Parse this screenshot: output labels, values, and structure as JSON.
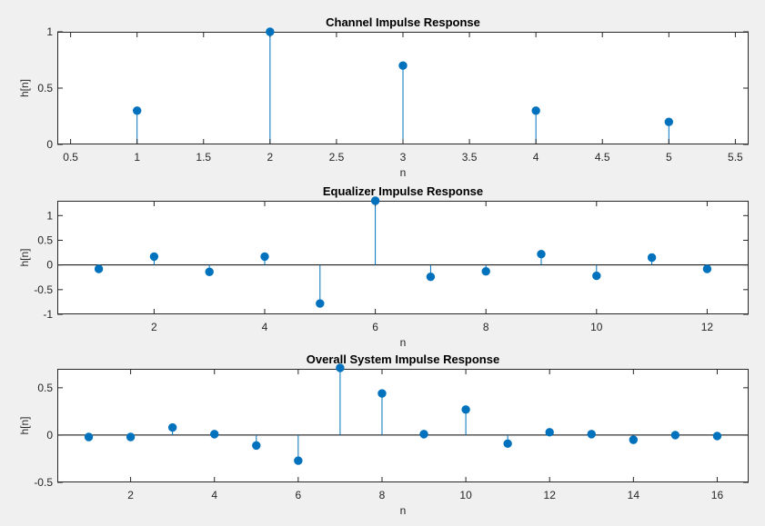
{
  "colors": {
    "background": "#f0f0f0",
    "axes_background": "#ffffff",
    "axes_border": "#262626",
    "stem": "#0072bd"
  },
  "chart_data": [
    {
      "type": "stem",
      "title": "Channel Impulse Response",
      "xlabel": "n",
      "ylabel": "h[n]",
      "xlim": [
        0.4,
        5.6
      ],
      "ylim": [
        0,
        1
      ],
      "xticks": [
        0.5,
        1,
        1.5,
        2,
        2.5,
        3,
        3.5,
        4,
        4.5,
        5,
        5.5
      ],
      "xtick_labels": [
        "0.5",
        "1",
        "1.5",
        "2",
        "2.5",
        "3",
        "3.5",
        "4",
        "4.5",
        "5",
        "5.5"
      ],
      "yticks": [
        0,
        0.5,
        1
      ],
      "ytick_labels": [
        "0",
        "0.5",
        "1"
      ],
      "x": [
        1,
        2,
        3,
        4,
        5
      ],
      "y": [
        0.3,
        1.0,
        0.7,
        0.3,
        0.2
      ]
    },
    {
      "type": "stem",
      "title": "Equalizer Impulse Response",
      "xlabel": "n",
      "ylabel": "h[n]",
      "xlim": [
        0.25,
        12.75
      ],
      "ylim": [
        -1,
        1.3
      ],
      "xticks": [
        2,
        4,
        6,
        8,
        10,
        12
      ],
      "xtick_labels": [
        "2",
        "4",
        "6",
        "8",
        "10",
        "12"
      ],
      "yticks": [
        -1,
        -0.5,
        0,
        0.5,
        1
      ],
      "ytick_labels": [
        "-1",
        "-0.5",
        "0",
        "0.5",
        "1"
      ],
      "x": [
        1,
        2,
        3,
        4,
        5,
        6,
        7,
        8,
        9,
        10,
        11,
        12
      ],
      "y": [
        -0.08,
        0.17,
        -0.14,
        0.17,
        -0.78,
        1.3,
        -0.24,
        -0.13,
        0.22,
        -0.22,
        0.15,
        -0.08
      ]
    },
    {
      "type": "stem",
      "title": "Overall System Impulse Response",
      "xlabel": "n",
      "ylabel": "h[n]",
      "xlim": [
        0.25,
        16.75
      ],
      "ylim": [
        -0.5,
        0.7
      ],
      "xticks": [
        2,
        4,
        6,
        8,
        10,
        12,
        14,
        16
      ],
      "xtick_labels": [
        "2",
        "4",
        "6",
        "8",
        "10",
        "12",
        "14",
        "16"
      ],
      "yticks": [
        -0.5,
        0,
        0.5
      ],
      "ytick_labels": [
        "-0.5",
        "0",
        "0.5"
      ],
      "x": [
        1,
        2,
        3,
        4,
        5,
        6,
        7,
        8,
        9,
        10,
        11,
        12,
        13,
        14,
        15,
        16
      ],
      "y": [
        -0.02,
        -0.02,
        0.08,
        0.01,
        -0.11,
        -0.27,
        0.71,
        0.44,
        0.01,
        0.27,
        -0.09,
        0.03,
        0.01,
        -0.05,
        0.0,
        -0.01
      ]
    }
  ]
}
